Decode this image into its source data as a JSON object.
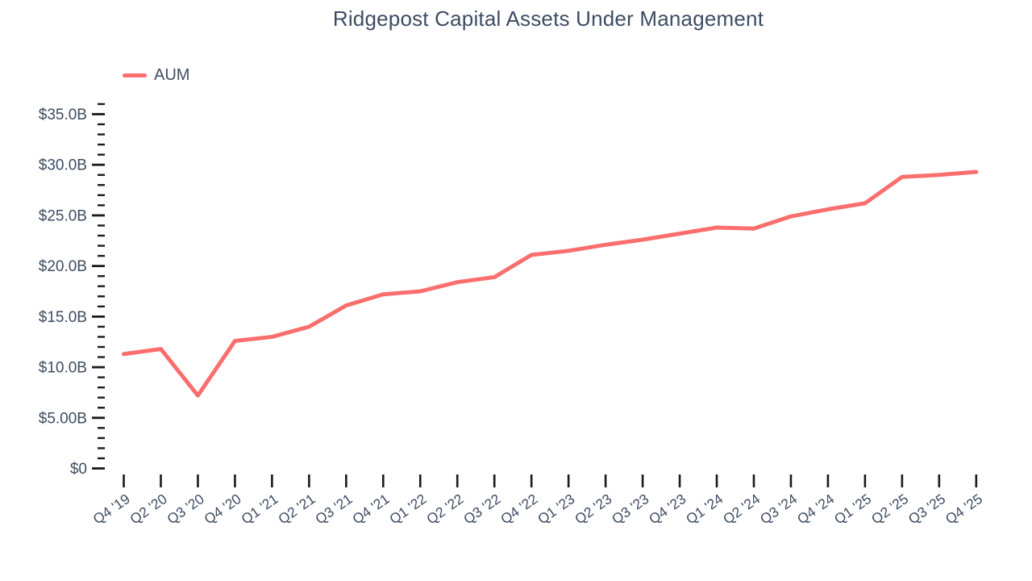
{
  "title": "Ridgepost Capital Assets Under Management",
  "legend": {
    "label": "AUM"
  },
  "colors": {
    "line": "#FA6E6E",
    "text": "#3E4C63",
    "tick": "#1A1A1A",
    "background": "#FFFFFF"
  },
  "chart_data": {
    "type": "line",
    "title": "Ridgepost Capital Assets Under Management",
    "legend_position": "top-left",
    "grid": false,
    "categories": [
      "Q4 '19",
      "Q2 '20",
      "Q3 '20",
      "Q4 '20",
      "Q1 '21",
      "Q2 '21",
      "Q3 '21",
      "Q4 '21",
      "Q1 '22",
      "Q2 '22",
      "Q3 '22",
      "Q4 '22",
      "Q1 '23",
      "Q2 '23",
      "Q3 '23",
      "Q4 '23",
      "Q1 '24",
      "Q2 '24",
      "Q3 '24",
      "Q4 '24",
      "Q1 '25",
      "Q2 '25",
      "Q3 '25",
      "Q4 '25"
    ],
    "series": [
      {
        "name": "AUM",
        "unit": "USD billions",
        "values": [
          11.3,
          11.8,
          7.2,
          12.6,
          13.0,
          14.0,
          16.1,
          17.2,
          17.5,
          18.4,
          18.9,
          21.1,
          21.5,
          22.1,
          22.6,
          23.2,
          23.8,
          23.7,
          24.9,
          25.6,
          26.2,
          28.8,
          29.0,
          29.3
        ]
      }
    ],
    "xlabel": "",
    "ylabel": "",
    "y_axis": {
      "min": 0,
      "max": 36,
      "major_tick_step": 5,
      "minor_tick_step": 1,
      "major_tick_values": [
        0,
        5,
        10,
        15,
        20,
        25,
        30,
        35
      ],
      "major_tick_labels": [
        "$0",
        "$5.00B",
        "$10.0B",
        "$15.0B",
        "$20.0B",
        "$25.0B",
        "$30.0B",
        "$35.0B"
      ]
    }
  }
}
